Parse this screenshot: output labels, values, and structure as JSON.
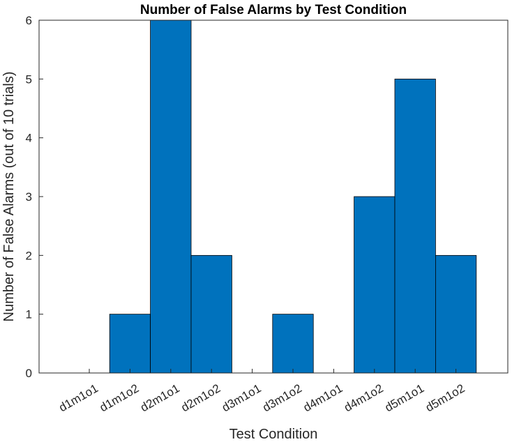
{
  "chart_data": {
    "type": "bar",
    "title": "Number of False Alarms by Test Condition",
    "xlabel": "Test Condition",
    "ylabel": "Number of False Alarms (out of 10 trials)",
    "categories": [
      "d1m1o1",
      "d1m1o2",
      "d2m1o1",
      "d2m1o2",
      "d3m1o1",
      "d3m1o2",
      "d4m1o1",
      "d4m1o2",
      "d5m1o1",
      "d5m1o2"
    ],
    "values": [
      0,
      1,
      6,
      2,
      0,
      1,
      0,
      3,
      5,
      2
    ],
    "ylim": [
      0,
      6
    ],
    "yticks": [
      "0",
      "1",
      "2",
      "3",
      "4",
      "5",
      "6"
    ],
    "grid": false,
    "bar_color": "#0072BD",
    "edge_color": "#000000"
  }
}
